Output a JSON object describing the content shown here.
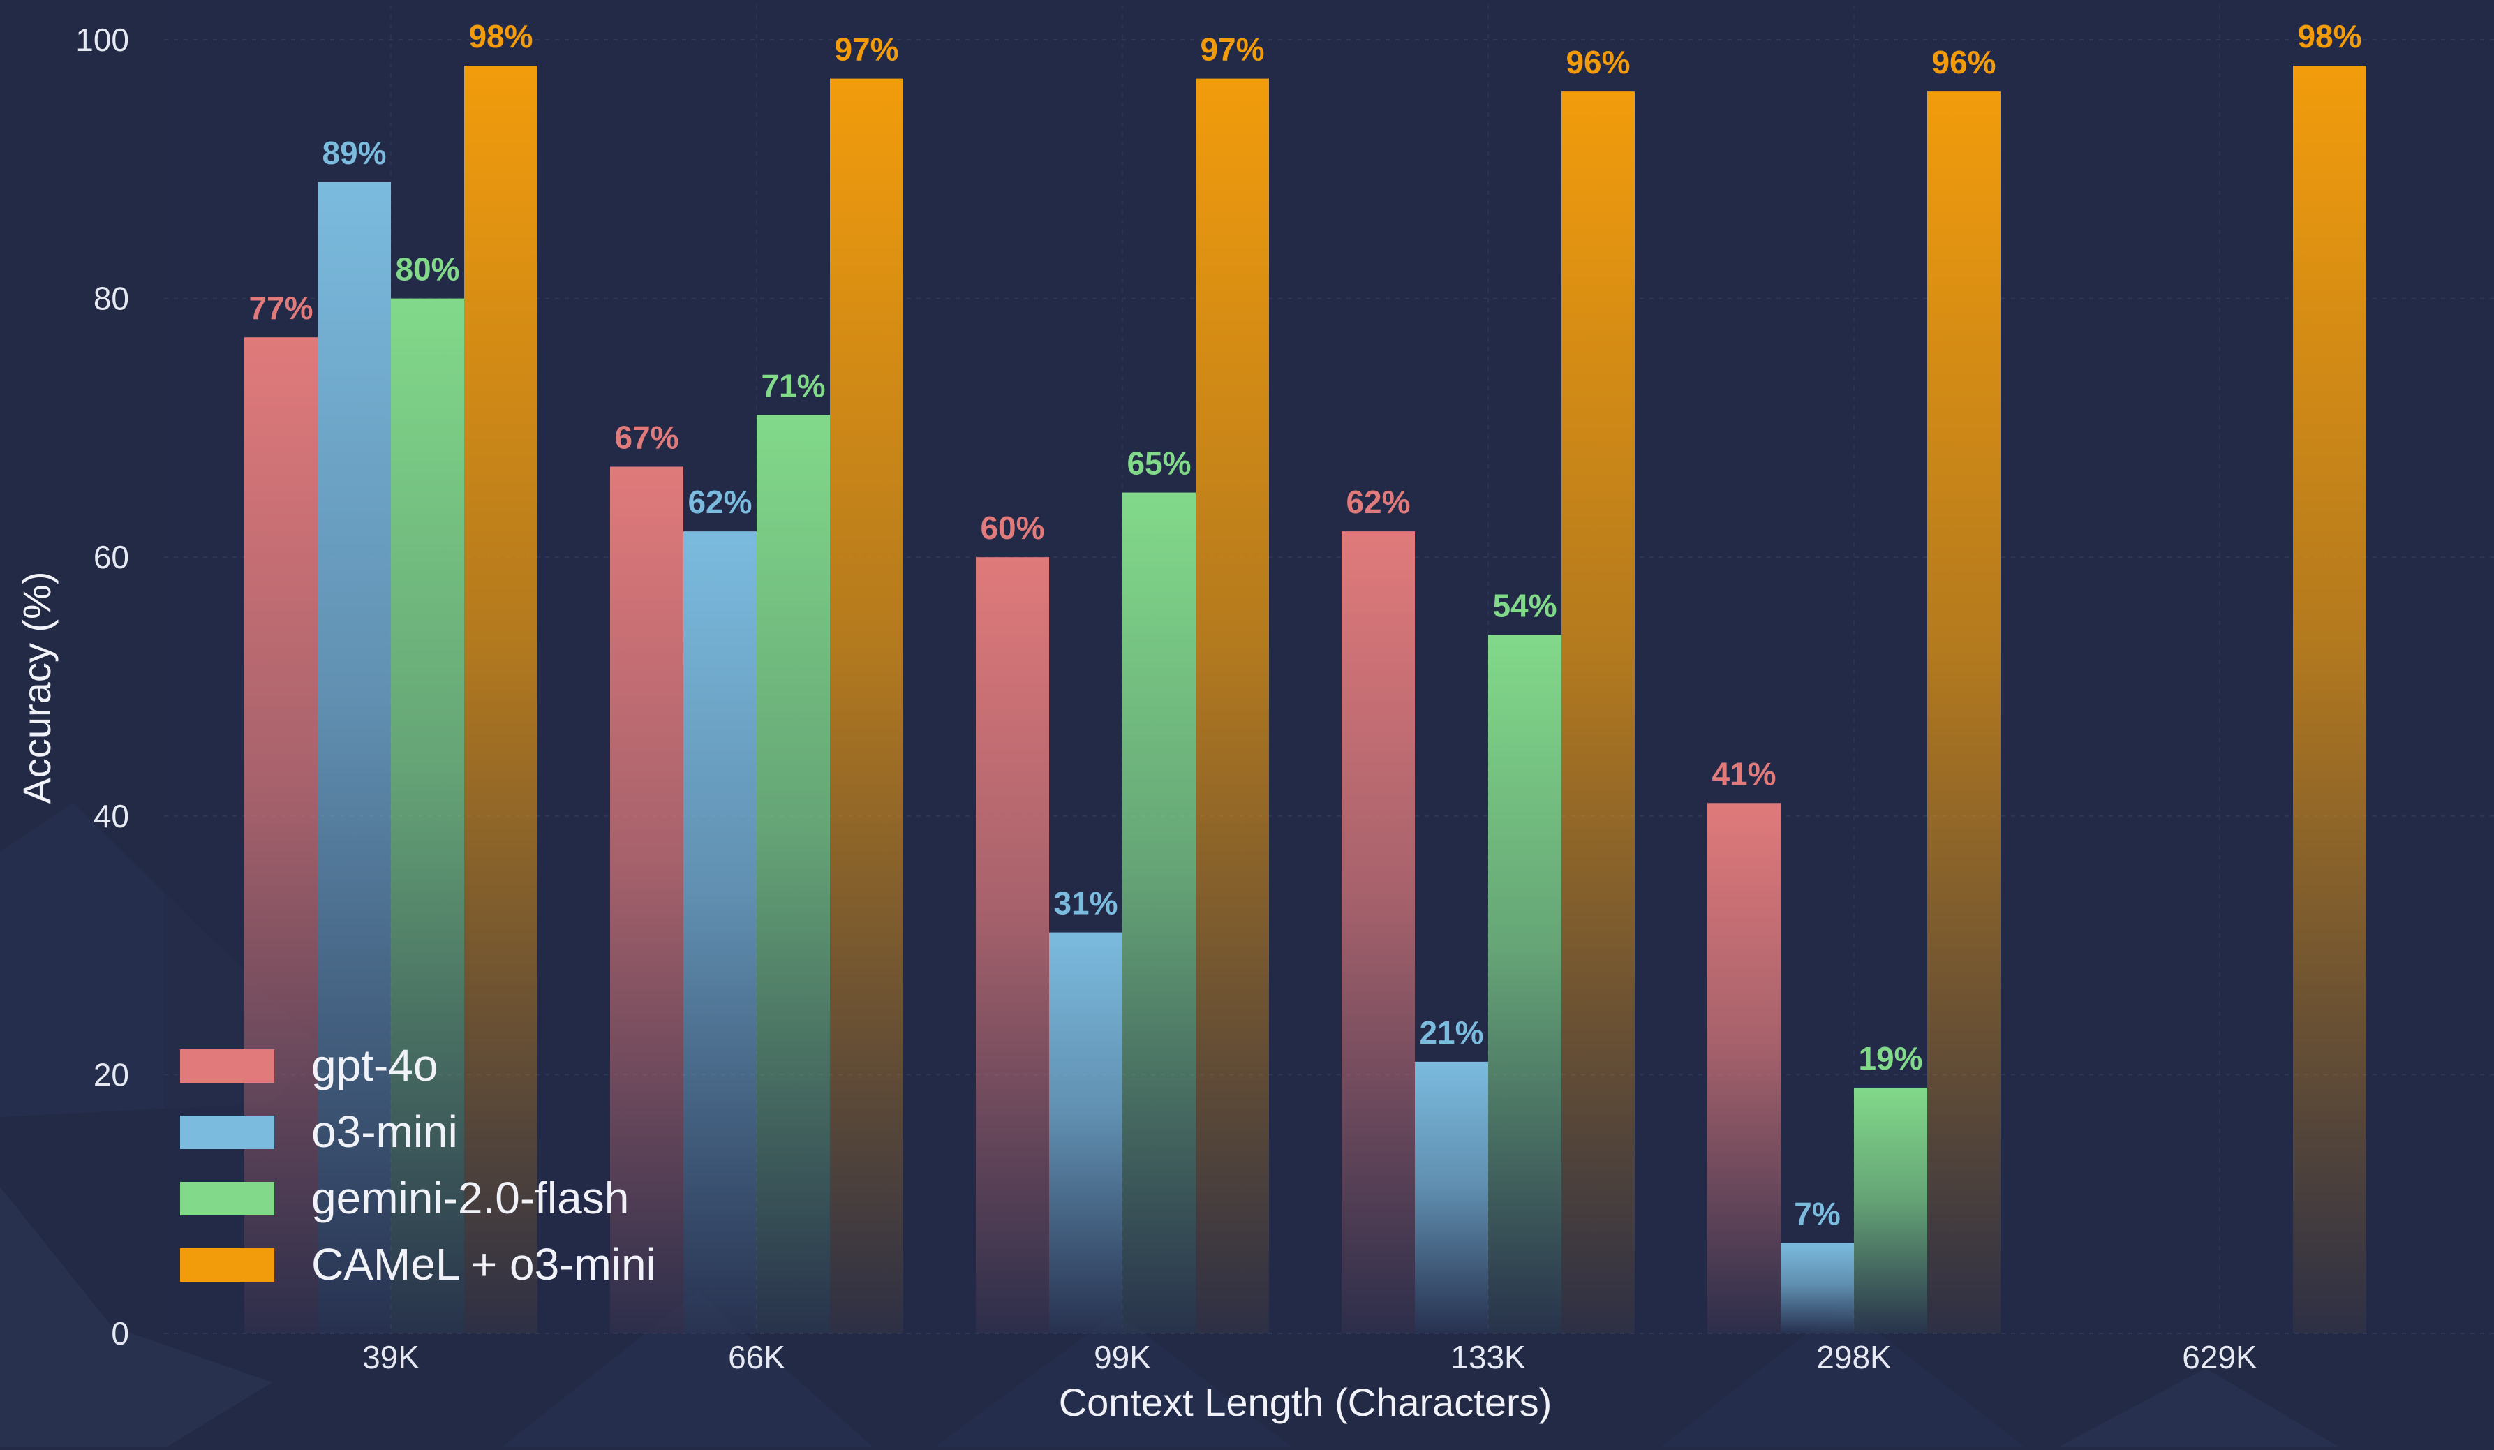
{
  "chart_data": {
    "type": "bar",
    "title": "",
    "xlabel": "Context Length (Characters)",
    "ylabel": "Accuracy (%)",
    "ylim": [
      0,
      100
    ],
    "yticks": [
      0,
      20,
      40,
      60,
      80,
      100
    ],
    "categories": [
      "39K",
      "66K",
      "99K",
      "133K",
      "298K",
      "629K"
    ],
    "value_suffix": "%",
    "grid": true,
    "legend_position": "bottom-left",
    "series": [
      {
        "name": "gpt-4o",
        "color": "#e07a7b",
        "values": [
          77,
          67,
          60,
          62,
          41,
          null
        ]
      },
      {
        "name": "o3-mini",
        "color": "#7bbbde",
        "values": [
          89,
          62,
          31,
          21,
          7,
          null
        ]
      },
      {
        "name": "gemini-2.0-flash",
        "color": "#82d98a",
        "values": [
          80,
          71,
          65,
          54,
          19,
          null
        ]
      },
      {
        "name": "CAMeL + o3-mini",
        "color": "#f29c0c",
        "values": [
          98,
          97,
          97,
          96,
          96,
          98
        ]
      }
    ]
  },
  "colors": {
    "background": "#222a46",
    "panel": "#252c49",
    "text": "#e6e9f2"
  }
}
